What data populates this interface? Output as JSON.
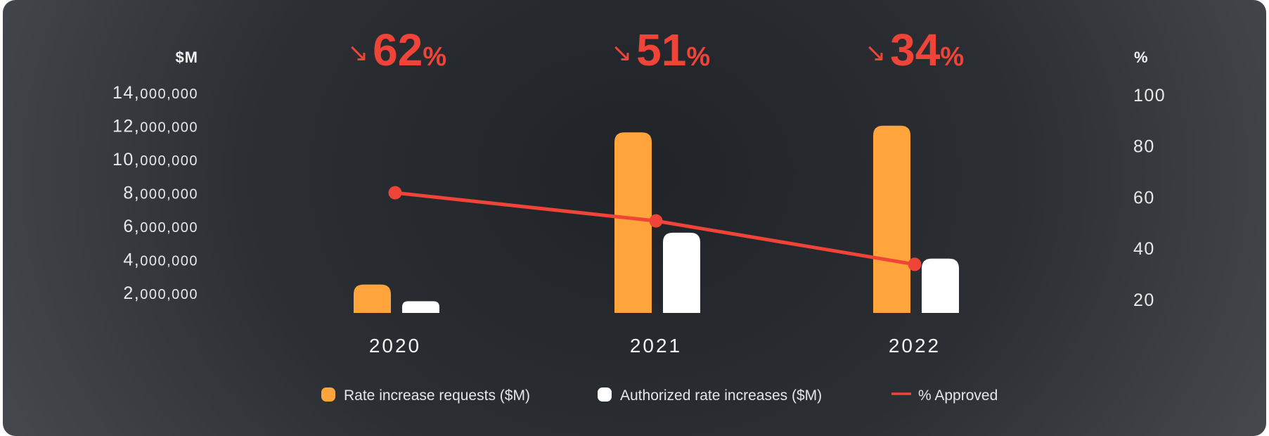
{
  "chart_data": {
    "type": "bar",
    "categories": [
      "2020",
      "2021",
      "2022"
    ],
    "series": [
      {
        "name": "Rate increase requests ($M)",
        "type": "bar",
        "axis": "left",
        "color": "#ffa53c",
        "values": [
          2700000,
          11800000,
          12200000
        ]
      },
      {
        "name": "Authorized rate increases ($M)",
        "type": "bar",
        "axis": "left",
        "color": "#ffffff",
        "values": [
          1700000,
          5800000,
          4250000
        ]
      },
      {
        "name": "% Approved",
        "type": "line",
        "axis": "right",
        "color": "#f04438",
        "values": [
          62,
          51,
          34
        ]
      }
    ],
    "headline_stats": [
      {
        "arrow": "↘",
        "value": "62",
        "unit": "%"
      },
      {
        "arrow": "↘",
        "value": "51",
        "unit": "%"
      },
      {
        "arrow": "↘",
        "value": "34",
        "unit": "%"
      }
    ],
    "left_axis": {
      "label": "$M",
      "ylim": [
        1000000,
        14000000
      ],
      "ticks": [
        {
          "value": 14000000,
          "lead": "14,",
          "rest": "000,000"
        },
        {
          "value": 12000000,
          "lead": "12,",
          "rest": "000,000"
        },
        {
          "value": 10000000,
          "lead": "10,",
          "rest": "000,000"
        },
        {
          "value": 8000000,
          "lead": "8,",
          "rest": "000,000"
        },
        {
          "value": 6000000,
          "lead": "6,",
          "rest": "000,000"
        },
        {
          "value": 4000000,
          "lead": "4,",
          "rest": "000,000"
        },
        {
          "value": 2000000,
          "lead": "2,",
          "rest": "000,000"
        }
      ]
    },
    "right_axis": {
      "label": "%",
      "ylim": [
        15,
        100
      ],
      "ticks": [
        "100",
        "80",
        "60",
        "40",
        "20"
      ]
    },
    "grid": true,
    "legend_position": "bottom-center"
  }
}
